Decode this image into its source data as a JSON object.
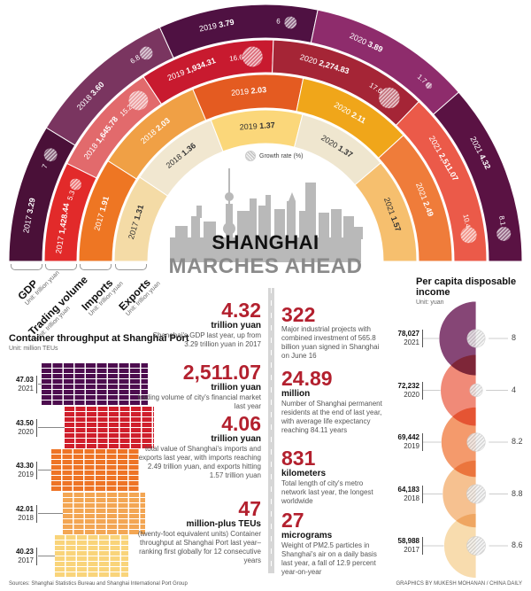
{
  "title": {
    "line1": "SHANGHAI",
    "line2": "MARCHES AHEAD"
  },
  "legend": {
    "growth_rate": "Growth rate (%)"
  },
  "chart_data": [
    {
      "type": "radial-bar",
      "years": [
        "2017",
        "2018",
        "2019",
        "2020",
        "2021"
      ],
      "series": [
        {
          "name": "GDP",
          "unit": "Unit: trillion yuan",
          "values": [
            "3.29",
            "3.60",
            "3.79",
            "3.89",
            "4.32"
          ],
          "growth": [
            "7",
            "6.8",
            "6",
            "1.7",
            "8.1"
          ],
          "colors": [
            "#4a1038",
            "#7a3560",
            "#4f1142",
            "#8e2c6c",
            "#5a1243"
          ],
          "text": "#ffffff"
        },
        {
          "name": "Trading volume",
          "unit": "Unit: trillion yuan",
          "values": [
            "1,428.44",
            "1,645.78",
            "1,934.31",
            "2,274.83",
            "2,511.07"
          ],
          "growth": [
            "5.3",
            "15.2",
            "16.6",
            "17.6",
            "10.4"
          ],
          "colors": [
            "#e22a2a",
            "#e26a6c",
            "#c81a2f",
            "#a52536",
            "#eb5a49"
          ],
          "text": "#ffffff"
        },
        {
          "name": "Imports",
          "unit": "Unit: trillion yuan",
          "values": [
            "1.91",
            "2.03",
            "2.03",
            "2.11",
            "2.49"
          ],
          "colors": [
            "#ee7623",
            "#f0a045",
            "#e45b21",
            "#f0a61a",
            "#ef7c3a"
          ],
          "text": "#ffffff"
        },
        {
          "name": "Exports",
          "unit": "Unit: trillion yuan",
          "values": [
            "1.31",
            "1.36",
            "1.37",
            "1.37",
            "1.57"
          ],
          "colors": [
            "#f4dba6",
            "#f1e7d0",
            "#fbd77a",
            "#efe6cf",
            "#f6bf6e"
          ],
          "text": "#333333"
        }
      ]
    },
    {
      "type": "bar",
      "title": "Container throughput at Shanghai Port",
      "unit": "Unit: million TEUs",
      "categories": [
        "2021",
        "2020",
        "2019",
        "2018",
        "2017"
      ],
      "values": [
        47.03,
        43.5,
        43.3,
        42.01,
        40.23
      ],
      "labels": [
        "47.03",
        "43.50",
        "43.30",
        "42.01",
        "40.23"
      ],
      "colors": [
        "#4d0d4f",
        "#d01f2c",
        "#ee7426",
        "#f3a653",
        "#f9d47a"
      ]
    },
    {
      "type": "semicircle",
      "title": "Per capita disposable income",
      "unit": "Unit: yuan",
      "categories": [
        "2021",
        "2020",
        "2019",
        "2018",
        "2017"
      ],
      "values": [
        78027,
        72232,
        69442,
        64183,
        58988
      ],
      "labels": [
        "78,027",
        "72,232",
        "69,442",
        "64,183",
        "58,988"
      ],
      "growth": [
        "8",
        "4",
        "8.2",
        "8.8",
        "8.6"
      ],
      "colors": [
        "#864676",
        "#f08a78",
        "#f49a6c",
        "#f6c190",
        "#f8dcae"
      ]
    }
  ],
  "facts_left": [
    {
      "big": "4.32",
      "unit": "trillion yuan",
      "text": "Shanghai's GDP last year, up from 3.29 trillion yuan in 2017"
    },
    {
      "big": "2,511.07",
      "unit": "trillion yuan",
      "text": "trading volume of city's financial market last year"
    },
    {
      "big": "4.06",
      "unit": "trillion yuan",
      "text": "total value of Shanghai's imports and exports last year, with imports reaching 2.49 trillion yuan, and exports hitting 1.57 trillion yuan"
    },
    {
      "big": "47",
      "unit": "million-plus TEUs",
      "text": "(twenty-foot equivalent units) Container throughput at Shanghai Port last year–ranking first globally for 12 consecutive years"
    }
  ],
  "facts_right": [
    {
      "big": "322",
      "unit": "",
      "text": "Major industrial projects with combined investment of 565.8 billion yuan signed in Shanghai on June 16"
    },
    {
      "big": "24.89",
      "unit": "million",
      "text": "Number of Shanghai permanent residents at the end of last year, with average life expectancy reaching 84.11 years"
    },
    {
      "big": "831",
      "unit": "kilometers",
      "text": "Total length of city's metro network last year, the longest worldwide"
    },
    {
      "big": "27",
      "unit": "micrograms",
      "text": "Weight of PM2.5 particles in Shanghai's air on a daily basis last year, a fall of 12.9 percent year-on-year"
    }
  ],
  "footer": {
    "sources": "Sources: Shanghai Statistics Bureau and Shanghai International Port Group",
    "credit": "GRAPHICS BY MUKESH MOHANAN / CHINA DAILY"
  }
}
